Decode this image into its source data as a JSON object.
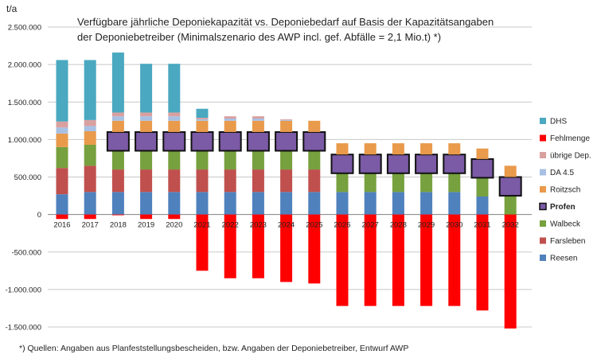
{
  "chart_data": {
    "type": "bar",
    "stacked": true,
    "title_line1": "Verfügbare jährliche Deponiekapazität  vs. Deponiebedarf auf Basis der Kapazitätsangaben",
    "title_line2": "der Deponiebetreiber (Minimalszenario des AWP incl. gef. Abfälle = 2,1 Mio.t) *)",
    "ylabel": "t/a",
    "xlabel": "",
    "ylim": [
      -1500000,
      2500000
    ],
    "yticks": [
      "2.500.000",
      "2.000.000",
      "1.500.000",
      "1.000.000",
      "500.000",
      "0",
      "-500.000",
      "-1.000.000",
      "-1.500.000"
    ],
    "categories": [
      "2016",
      "2017",
      "2018",
      "2019",
      "2020",
      "2021",
      "2022",
      "2023",
      "2024",
      "2025",
      "2026",
      "2027",
      "2028",
      "2029",
      "2030",
      "2031",
      "2032"
    ],
    "series": [
      {
        "name": "Reesen",
        "color": "#4f81bd",
        "values": [
          270000,
          300000,
          300000,
          300000,
          300000,
          300000,
          300000,
          300000,
          300000,
          300000,
          300000,
          300000,
          300000,
          300000,
          300000,
          240000,
          0
        ]
      },
      {
        "name": "Farsleben",
        "color": "#c0504d",
        "values": [
          350000,
          350000,
          300000,
          300000,
          300000,
          300000,
          300000,
          300000,
          300000,
          300000,
          0,
          0,
          0,
          0,
          0,
          0,
          0
        ]
      },
      {
        "name": "Walbeck",
        "color": "#77a03e",
        "values": [
          280000,
          280000,
          250000,
          250000,
          250000,
          250000,
          250000,
          250000,
          250000,
          250000,
          250000,
          250000,
          250000,
          250000,
          250000,
          250000,
          250000
        ]
      },
      {
        "name": "Profen",
        "color": "#7b5aa6",
        "values": [
          0,
          0,
          250000,
          250000,
          250000,
          250000,
          250000,
          250000,
          250000,
          250000,
          250000,
          250000,
          250000,
          250000,
          250000,
          250000,
          250000
        ]
      },
      {
        "name": "Roitzsch",
        "color": "#e99a4b",
        "values": [
          180000,
          180000,
          150000,
          150000,
          150000,
          150000,
          150000,
          150000,
          150000,
          150000,
          150000,
          150000,
          150000,
          150000,
          150000,
          140000,
          150000
        ]
      },
      {
        "name": "DA 4.5",
        "color": "#a7c0e3",
        "values": [
          80000,
          70000,
          60000,
          60000,
          60000,
          20000,
          30000,
          30000,
          10000,
          0,
          0,
          0,
          0,
          0,
          0,
          0,
          0
        ]
      },
      {
        "name": "übrige Dep.",
        "color": "#d9a0a0",
        "values": [
          80000,
          80000,
          50000,
          50000,
          50000,
          20000,
          30000,
          30000,
          10000,
          0,
          0,
          0,
          0,
          0,
          0,
          0,
          0
        ]
      },
      {
        "name": "DHS",
        "color": "#4aa8c0",
        "values": [
          820000,
          800000,
          800000,
          650000,
          650000,
          120000,
          0,
          0,
          0,
          0,
          0,
          0,
          0,
          0,
          0,
          0,
          0
        ]
      },
      {
        "name": "Fehlmenge",
        "color": "#ff0000",
        "values": [
          -60000,
          -60000,
          -10000,
          -60000,
          -60000,
          -750000,
          -850000,
          -850000,
          -900000,
          -920000,
          -1220000,
          -1220000,
          -1220000,
          -1220000,
          -1220000,
          -1280000,
          -1520000
        ]
      }
    ],
    "legend_order": [
      "DHS",
      "Fehlmenge",
      "übrige Dep.",
      "DA 4.5",
      "Roitzsch",
      "Profen",
      "Walbeck",
      "Farsleben",
      "Reesen"
    ],
    "legend_placement": "right",
    "grid": true,
    "highlighted_series": "Profen"
  },
  "footnote": "*) Quellen: Angaben aus Planfeststellungsbescheiden, bzw. Angaben der Deponiebetreiber, Entwurf AWP"
}
